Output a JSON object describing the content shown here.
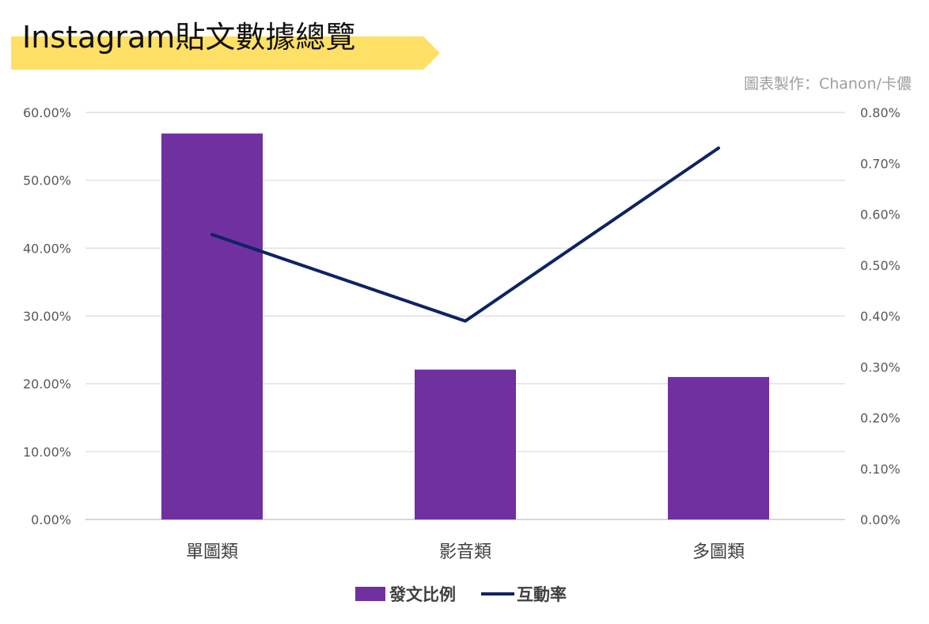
{
  "title": "Instagram貼文數據總覽",
  "credit": "圖表製作：Chanon/卡儂",
  "colors": {
    "banner": "#ffe066",
    "bar": "#7030a0",
    "line": "#0d2461",
    "grid": "#d9d9d9",
    "axis": "#bfbfbf"
  },
  "chart_data": {
    "type": "bar",
    "categories": [
      "單圖類",
      "影音類",
      "多圖類"
    ],
    "series": [
      {
        "name": "發文比例",
        "type": "bar",
        "axis": "left",
        "values": [
          56.9,
          22.1,
          21.0
        ]
      },
      {
        "name": "互動率",
        "type": "line",
        "axis": "right",
        "values": [
          0.56,
          0.39,
          0.73
        ]
      }
    ],
    "y_left": {
      "range": [
        0,
        60
      ],
      "ticks": [
        "0.00%",
        "10.00%",
        "20.00%",
        "30.00%",
        "40.00%",
        "50.00%",
        "60.00%"
      ]
    },
    "y_right": {
      "range": [
        0,
        0.8
      ],
      "ticks": [
        "0.00%",
        "0.10%",
        "0.20%",
        "0.30%",
        "0.40%",
        "0.50%",
        "0.60%",
        "0.70%",
        "0.80%"
      ]
    },
    "grid": true,
    "legend_position": "bottom"
  }
}
